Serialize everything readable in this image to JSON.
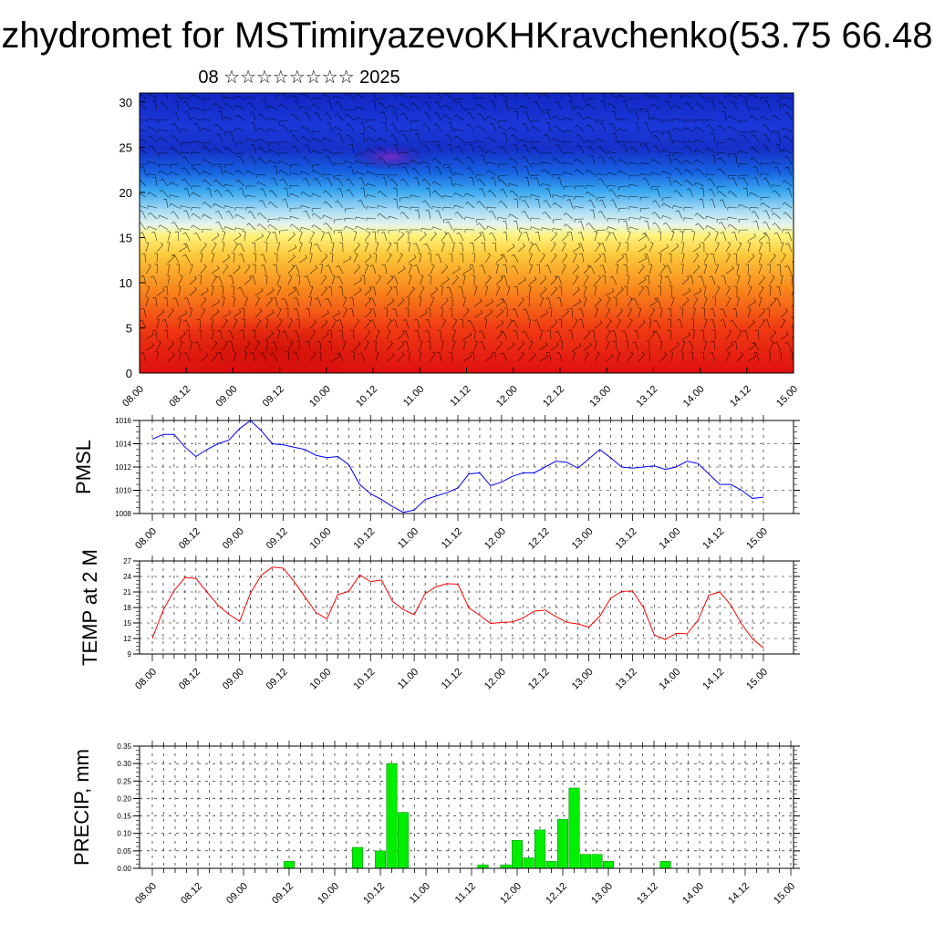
{
  "header": {
    "title": "zhydromet for MSTimiryazevoKHKravchenko(53.75 66.48",
    "subtitle": "08 ☆☆☆☆☆☆☆☆ 2025"
  },
  "colors": {
    "pmsl_line": "#0000ff",
    "temp_line": "#ff0000",
    "precip_bar": "#00ee00",
    "precip_bar_edge": "#008800"
  },
  "chart_data": [
    {
      "type": "heatmap",
      "name_hint": "cross-section",
      "xlabel": "",
      "ylabel": "",
      "ylim": [
        0,
        31
      ],
      "yticks": [
        "0",
        "5",
        "10",
        "15",
        "20",
        "25",
        "30"
      ],
      "x_ticks": [
        "08.00",
        "08.12",
        "09.00",
        "09.12",
        "10.00",
        "10.12",
        "11.00",
        "11.12",
        "12.00",
        "12.12",
        "13.00",
        "13.12",
        "14.00",
        "14.12",
        "15.00"
      ]
    },
    {
      "type": "line",
      "ylabel": "PMSL",
      "ylim": [
        1008,
        1016
      ],
      "yticks": [
        "1008",
        "1010",
        "1012",
        "1014",
        "1016"
      ],
      "x_ticks": [
        "08.00",
        "08.12",
        "09.00",
        "09.12",
        "10.00",
        "10.12",
        "11.00",
        "11.12",
        "12.00",
        "12.12",
        "13.00",
        "13.12",
        "14.00",
        "14.12",
        "15.00"
      ],
      "values": [
        1014.4,
        1014.8,
        1014.8,
        1013.7,
        1012.9,
        1013.5,
        1014.0,
        1014.3,
        1015.3,
        1016.0,
        1015.1,
        1014.0,
        1013.9,
        1013.7,
        1013.5,
        1013.0,
        1012.8,
        1012.9,
        1012.2,
        1010.5,
        1009.7,
        1009.2,
        1008.6,
        1008.1,
        1008.3,
        1009.2,
        1009.5,
        1009.8,
        1010.2,
        1011.4,
        1011.5,
        1010.4,
        1010.7,
        1011.2,
        1011.5,
        1011.5,
        1012.0,
        1012.5,
        1012.4,
        1011.9,
        1012.7,
        1013.5,
        1012.8,
        1012.0,
        1011.9,
        1012.0,
        1012.1,
        1011.8,
        1012.0,
        1012.5,
        1012.3,
        1011.4,
        1010.5,
        1010.5,
        1010.0,
        1009.3,
        1009.4
      ]
    },
    {
      "type": "line",
      "ylabel": "TEMP at 2 M",
      "ylim": [
        9,
        27
      ],
      "yticks": [
        "9",
        "12",
        "15",
        "18",
        "21",
        "24",
        "27"
      ],
      "x_ticks": [
        "08.00",
        "08.12",
        "09.00",
        "09.12",
        "10.00",
        "10.12",
        "11.00",
        "11.12",
        "12.00",
        "12.12",
        "13.00",
        "13.12",
        "14.00",
        "14.12",
        "15.00"
      ],
      "values": [
        12.0,
        17.5,
        21.3,
        23.8,
        23.6,
        21.0,
        18.5,
        16.7,
        15.3,
        20.8,
        24.3,
        25.8,
        25.6,
        23.0,
        20.0,
        17.0,
        15.8,
        20.5,
        21.1,
        24.3,
        23.0,
        23.3,
        19.2,
        17.6,
        16.6,
        20.7,
        22.0,
        22.6,
        22.5,
        17.9,
        16.5,
        14.9,
        15.1,
        15.2,
        16.0,
        17.3,
        17.5,
        16.2,
        15.1,
        14.8,
        14.2,
        16.3,
        19.8,
        21.1,
        21.2,
        18.0,
        12.7,
        11.8,
        13.0,
        12.9,
        15.5,
        20.4,
        21.0,
        18.5,
        14.8,
        11.9,
        10.2
      ]
    },
    {
      "type": "bar",
      "ylabel": "PRECIP, mm",
      "ylim": [
        0,
        0.35
      ],
      "yticks": [
        "0.00",
        "0.05",
        "0.10",
        "0.15",
        "0.20",
        "0.25",
        "0.30",
        "0.35"
      ],
      "x_ticks": [
        "08.00",
        "08.12",
        "09.00",
        "09.12",
        "10.00",
        "10.12",
        "11.00",
        "11.12",
        "12.00",
        "12.12",
        "13.00",
        "13.12",
        "14.00",
        "14.12",
        "15.00"
      ],
      "values": [
        0,
        0,
        0,
        0,
        0,
        0,
        0,
        0,
        0,
        0,
        0,
        0,
        0.02,
        0,
        0,
        0,
        0,
        0,
        0.06,
        0,
        0.05,
        0.3,
        0.16,
        0,
        0,
        0,
        0,
        0,
        0,
        0.01,
        0,
        0.01,
        0.08,
        0.03,
        0.11,
        0.02,
        0.14,
        0.23,
        0.04,
        0.04,
        0.02,
        0,
        0,
        0,
        0,
        0.02,
        0,
        0,
        0,
        0,
        0,
        0,
        0,
        0,
        0,
        0,
        0
      ]
    }
  ]
}
